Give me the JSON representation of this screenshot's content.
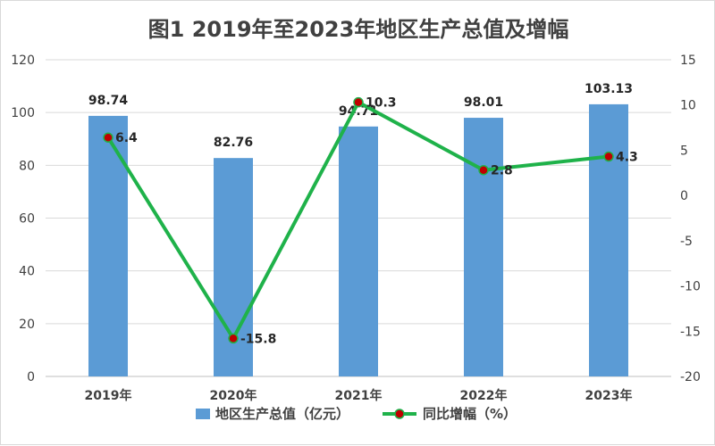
{
  "chart_data": {
    "type": "bar+line",
    "title": "图1 2019年至2023年地区生产总值及增幅",
    "categories": [
      "2019年",
      "2020年",
      "2021年",
      "2022年",
      "2023年"
    ],
    "series": [
      {
        "name": "地区生产总值（亿元）",
        "type": "bar",
        "axis": "left",
        "values": [
          98.74,
          82.76,
          94.71,
          98.01,
          103.13
        ],
        "labels": [
          "98.74",
          "82.76",
          "94.71",
          "98.01",
          "103.13"
        ],
        "color": "#5b9bd5"
      },
      {
        "name": "同比增幅（%）",
        "type": "line",
        "axis": "right",
        "values": [
          6.4,
          -15.8,
          10.3,
          2.8,
          4.3
        ],
        "labels": [
          "6.4",
          "-15.8",
          "10.3",
          "2.8",
          "4.3"
        ],
        "color": "#1fb24a",
        "marker_color": "#c00000"
      }
    ],
    "y_left": {
      "lim": [
        0,
        120
      ],
      "ticks": [
        "0",
        "20",
        "40",
        "60",
        "80",
        "100",
        "120"
      ]
    },
    "y_right": {
      "lim": [
        -20,
        15
      ],
      "ticks": [
        "-20",
        "-15",
        "-10",
        "-5",
        "0",
        "5",
        "10",
        "15"
      ]
    },
    "grid": true,
    "legend_position": "bottom"
  }
}
